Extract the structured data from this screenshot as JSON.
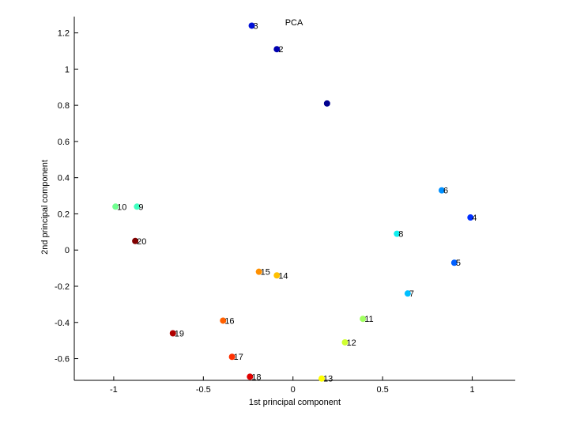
{
  "chart_data": {
    "type": "scatter",
    "title": "PCA",
    "xlabel": "1st principal component",
    "ylabel": "2nd principal component",
    "xlim": [
      -1.22,
      1.24
    ],
    "ylim": [
      -0.72,
      1.29
    ],
    "xticks": [
      -1,
      -0.5,
      0,
      0.5,
      1
    ],
    "yticks": [
      -0.6,
      -0.4,
      -0.2,
      0,
      0.2,
      0.4,
      0.6,
      0.8,
      1,
      1.2
    ],
    "grid": false,
    "points": [
      {
        "label": "",
        "x": 0.19,
        "y": 0.81,
        "color": "#00008f"
      },
      {
        "label": "2",
        "x": -0.09,
        "y": 1.11,
        "color": "#0000b0"
      },
      {
        "label": "3",
        "x": -0.23,
        "y": 1.24,
        "color": "#0010d8"
      },
      {
        "label": "4",
        "x": 0.99,
        "y": 0.18,
        "color": "#0030ff"
      },
      {
        "label": "5",
        "x": 0.9,
        "y": -0.07,
        "color": "#0060ff"
      },
      {
        "label": "6",
        "x": 0.83,
        "y": 0.33,
        "color": "#0090ff"
      },
      {
        "label": "7",
        "x": 0.64,
        "y": -0.24,
        "color": "#00bfff"
      },
      {
        "label": "8",
        "x": 0.58,
        "y": 0.09,
        "color": "#10efef"
      },
      {
        "label": "9",
        "x": -0.87,
        "y": 0.24,
        "color": "#40ffc0"
      },
      {
        "label": "10",
        "x": -0.99,
        "y": 0.24,
        "color": "#70ff90"
      },
      {
        "label": "11",
        "x": 0.39,
        "y": -0.38,
        "color": "#a0ff60"
      },
      {
        "label": "12",
        "x": 0.29,
        "y": -0.51,
        "color": "#d0ff30"
      },
      {
        "label": "13",
        "x": 0.16,
        "y": -0.71,
        "color": "#ffff00"
      },
      {
        "label": "14",
        "x": -0.09,
        "y": -0.14,
        "color": "#ffc000"
      },
      {
        "label": "15",
        "x": -0.19,
        "y": -0.12,
        "color": "#ff9000"
      },
      {
        "label": "16",
        "x": -0.39,
        "y": -0.39,
        "color": "#ff6000"
      },
      {
        "label": "17",
        "x": -0.34,
        "y": -0.59,
        "color": "#ff3000"
      },
      {
        "label": "18",
        "x": -0.24,
        "y": -0.7,
        "color": "#e00000"
      },
      {
        "label": "19",
        "x": -0.67,
        "y": -0.46,
        "color": "#b00000"
      },
      {
        "label": "20",
        "x": -0.88,
        "y": 0.05,
        "color": "#800000"
      }
    ]
  }
}
